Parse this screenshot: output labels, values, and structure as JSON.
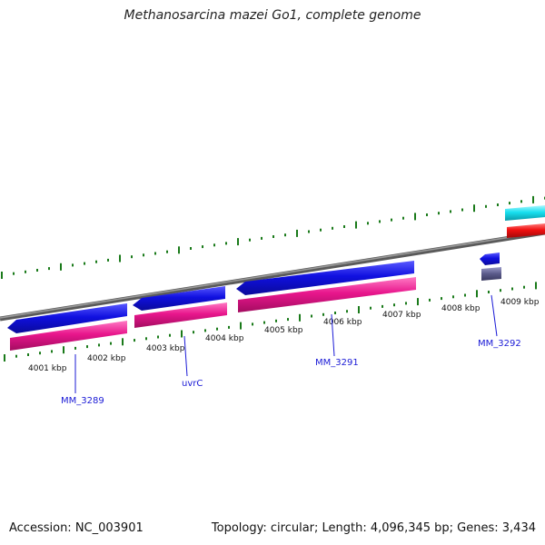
{
  "title": "Methanosarcina mazei Go1, complete genome",
  "footer": {
    "accession": "Accession: NC_003901",
    "stats": "Topology: circular; Length: 4,096,345 bp; Genes: 3,434"
  },
  "colors": {
    "backbone": "#7a7a7a",
    "cds_blue": "#1010e0",
    "gene_pink": "#e8168c",
    "cds_cyan": "#18e0f0",
    "gene_red": "#f01010",
    "small_grey": "#5a5a8a",
    "tick": "#1a7a1a",
    "label": "#1a1ad6"
  },
  "ruler": {
    "labels": [
      "4001 kbp",
      "4002 kbp",
      "4003 kbp",
      "4004 kbp",
      "4005 kbp",
      "4006 kbp",
      "4007 kbp",
      "4008 kbp",
      "4009 kbp"
    ]
  },
  "gene_labels": [
    "MM_3289",
    "uvrC",
    "MM_3291",
    "MM_3292"
  ]
}
